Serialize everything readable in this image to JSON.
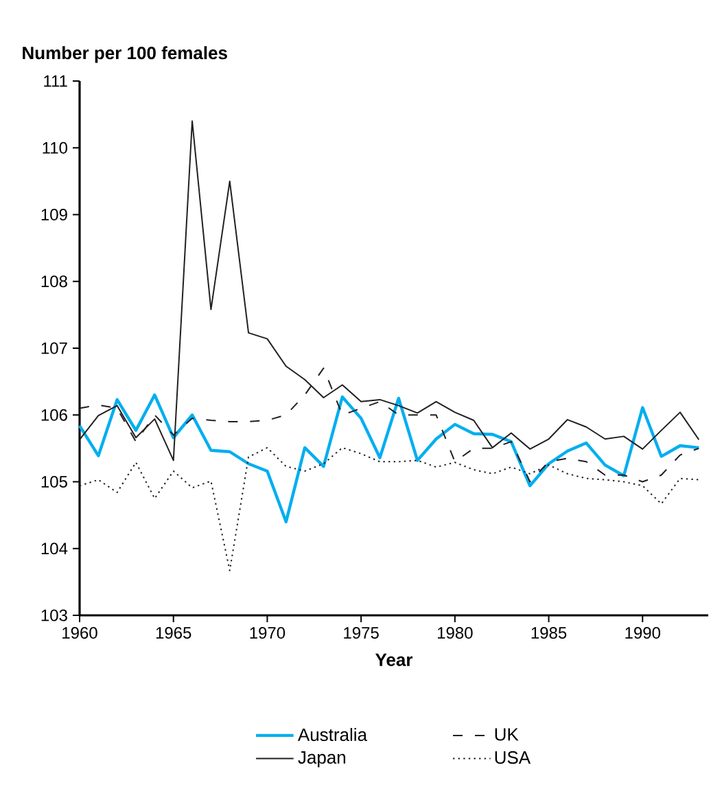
{
  "chart_data": {
    "type": "line",
    "ylabel": "Number per 100 females",
    "xlabel": "Year",
    "x": [
      1960,
      1961,
      1962,
      1963,
      1964,
      1965,
      1966,
      1967,
      1968,
      1969,
      1970,
      1971,
      1972,
      1973,
      1974,
      1975,
      1976,
      1977,
      1978,
      1979,
      1980,
      1981,
      1982,
      1983,
      1984,
      1985,
      1986,
      1987,
      1988,
      1989,
      1990,
      1991,
      1992,
      1993
    ],
    "series": [
      {
        "name": "Australia",
        "color": "#00aeef",
        "line_style": "solid",
        "values": [
          105.84,
          105.39,
          106.23,
          105.77,
          106.3,
          105.66,
          106.0,
          105.47,
          105.45,
          105.27,
          105.16,
          104.4,
          105.51,
          105.23,
          106.27,
          105.95,
          105.36,
          106.25,
          105.32,
          105.64,
          105.86,
          105.72,
          105.71,
          105.6,
          104.94,
          105.27,
          105.46,
          105.58,
          105.25,
          105.09,
          106.11,
          105.38,
          105.54,
          105.51
        ]
      },
      {
        "name": "Japan",
        "color": "#231f20",
        "line_style": "solid",
        "values": [
          105.63,
          105.99,
          106.14,
          105.66,
          105.94,
          105.32,
          110.4,
          107.58,
          109.5,
          107.23,
          107.14,
          106.73,
          106.53,
          106.26,
          106.45,
          106.2,
          106.23,
          106.14,
          106.03,
          106.2,
          106.04,
          105.92,
          105.51,
          105.73,
          105.49,
          105.64,
          105.93,
          105.82,
          105.64,
          105.68,
          105.49,
          105.77,
          106.04,
          105.63
        ]
      },
      {
        "name": "UK",
        "color": "#231f20",
        "line_style": "dashed",
        "values": [
          106.1,
          106.15,
          106.1,
          105.6,
          106.0,
          105.7,
          105.95,
          105.92,
          105.9,
          105.9,
          105.92,
          106.0,
          106.3,
          106.7,
          106.0,
          106.1,
          106.2,
          106.0,
          106.0,
          106.0,
          105.3,
          105.5,
          105.5,
          105.6,
          105.0,
          105.3,
          105.35,
          105.3,
          105.1,
          105.1,
          105.0,
          105.1,
          105.4,
          105.5
        ]
      },
      {
        "name": "USA",
        "color": "#231f20",
        "line_style": "dotted",
        "values": [
          104.94,
          105.03,
          104.84,
          105.29,
          104.75,
          105.16,
          104.91,
          105.01,
          103.67,
          105.37,
          105.51,
          105.23,
          105.16,
          105.27,
          105.51,
          105.42,
          105.3,
          105.3,
          105.32,
          105.22,
          105.29,
          105.18,
          105.12,
          105.22,
          105.12,
          105.25,
          105.12,
          105.05,
          105.03,
          105.0,
          104.94,
          104.67,
          105.05,
          105.03
        ]
      }
    ],
    "xlim": [
      1960,
      1993.5
    ],
    "ylim": [
      103,
      111
    ],
    "xticks": [
      1960,
      1965,
      1970,
      1975,
      1980,
      1985,
      1990
    ],
    "yticks": [
      103,
      104,
      105,
      106,
      107,
      108,
      109,
      110,
      111
    ],
    "legend": "bottom",
    "grid": false
  }
}
